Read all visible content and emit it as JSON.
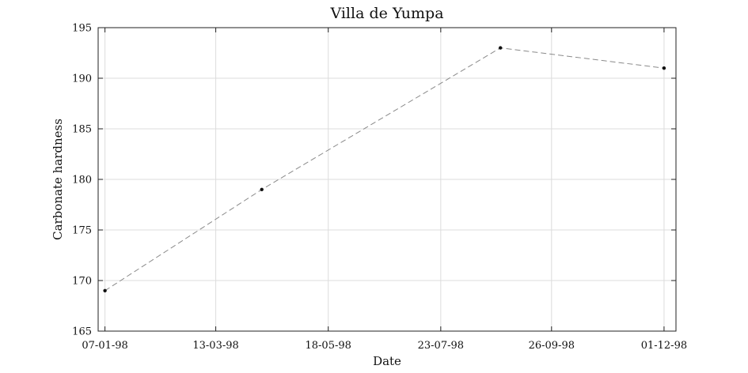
{
  "chart_data": {
    "type": "line",
    "title": "Villa de Yumpa",
    "xlabel": "Date",
    "ylabel": "Carbonate hardness",
    "x_ticks": [
      "07-01-98",
      "13-03-98",
      "18-05-98",
      "23-07-98",
      "26-09-98",
      "01-12-98"
    ],
    "xlim": [
      "1998-01-03",
      "1998-12-08"
    ],
    "ylim": [
      165,
      195
    ],
    "y_ticks": [
      165,
      170,
      175,
      180,
      185,
      190,
      195
    ],
    "grid": true,
    "series": [
      {
        "x": [
          "1998-01-07",
          "1998-04-09",
          "1998-08-27",
          "1998-12-01"
        ],
        "y": [
          169,
          179,
          193,
          191
        ],
        "style": "dashed",
        "color": "#8a8a8a",
        "marker": "dot"
      }
    ]
  }
}
